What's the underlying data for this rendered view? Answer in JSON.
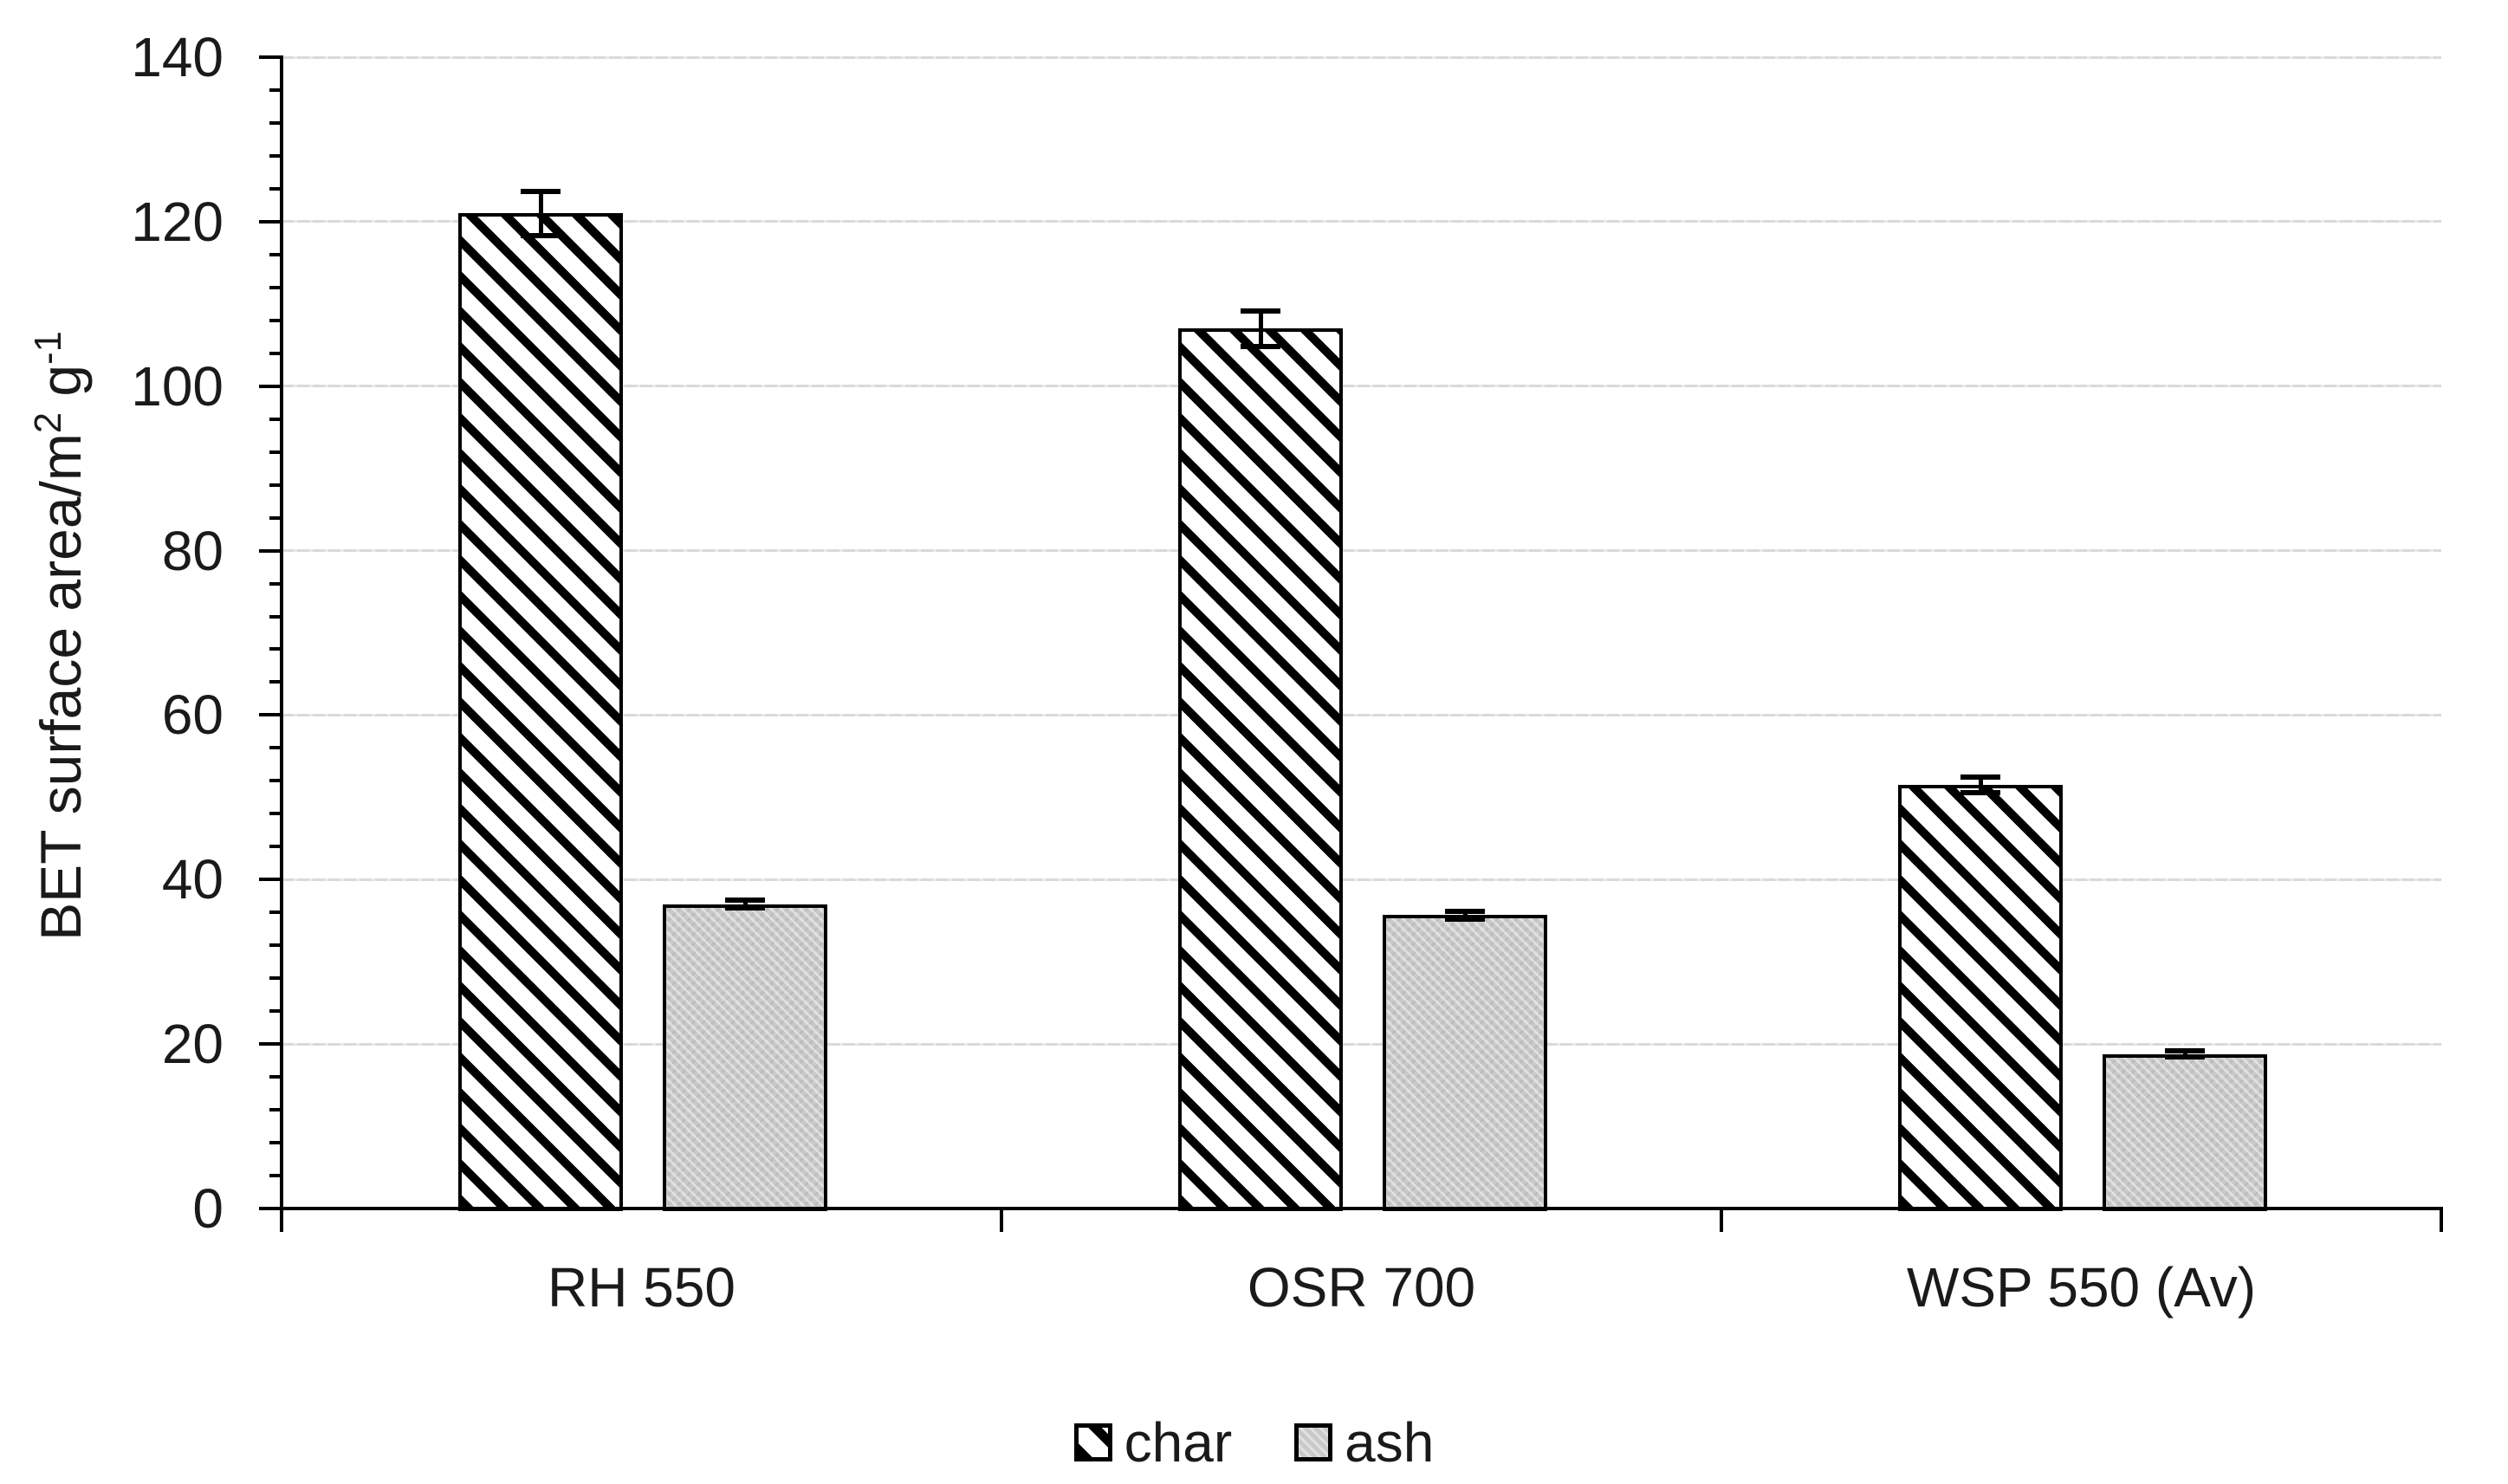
{
  "figure": {
    "background": "#ffffff",
    "y_axis": {
      "title_main": "BET surface area/m",
      "title_sup1": "2",
      "title_mid": " g",
      "title_sup2": "-1",
      "tick_labels": [
        "0",
        "20",
        "40",
        "60",
        "80",
        "100",
        "120",
        "140"
      ],
      "major_unit": 20,
      "minor_unit": 4,
      "min": 0,
      "max": 140
    },
    "x_axis": {
      "labels": [
        "RH 550",
        "OSR 700",
        "WSP 550 (Av)"
      ]
    },
    "legend": [
      {
        "label": "char",
        "swatch": "diagonal-hatch"
      },
      {
        "label": "ash",
        "swatch": "gray-fill"
      }
    ],
    "colors": {
      "hatch": "#000000",
      "ash_fill": "#c9c9c9",
      "gridline": "#d9d9d9",
      "axis": "#000000",
      "text": "#1a1a1a"
    }
  },
  "chart_data": {
    "type": "bar",
    "title": "",
    "categories": [
      "RH 550",
      "OSR 700",
      "WSP 550 (Av)"
    ],
    "series": [
      {
        "name": "char",
        "values": [
          121,
          107,
          51.5
        ],
        "errors": [
          3,
          2.5,
          1.3
        ],
        "fill": "black-diagonal-hatch"
      },
      {
        "name": "ash",
        "values": [
          37,
          35.7,
          18.8
        ],
        "errors": [
          0.8,
          0.8,
          0.7
        ],
        "fill": "light-gray"
      }
    ],
    "xlabel": "",
    "ylabel": "BET surface area/m2 g-1",
    "ylim": [
      0,
      140
    ],
    "y_major_tick": 20,
    "y_minor_tick": 4,
    "grid": "horizontal-major",
    "legend_position": "bottom-center",
    "error_bars": true
  }
}
